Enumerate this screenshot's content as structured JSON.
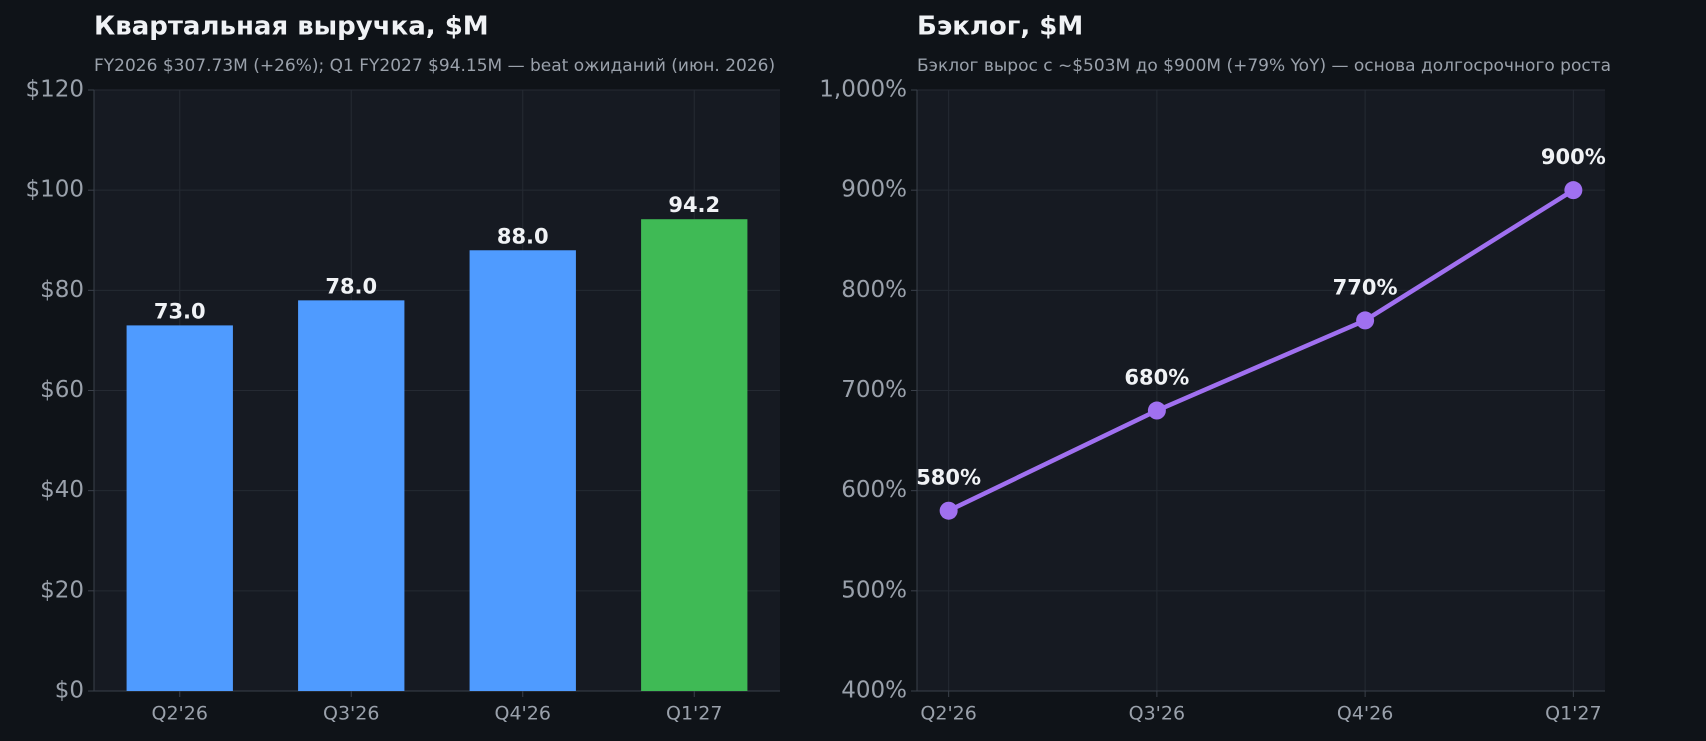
{
  "chart_data": [
    {
      "type": "bar",
      "title": "Квартальная выручка, $M",
      "subtitle": "FY2026 $307.73M (+26%); Q1 FY2027 $94.15M — beat ожиданий (июн. 2026)",
      "categories": [
        "Q2'26",
        "Q3'26",
        "Q4'26",
        "Q1'27"
      ],
      "values": [
        73,
        78,
        88,
        94.2
      ],
      "value_labels": [
        "73.0",
        "78.0",
        "88.0",
        "94.2"
      ],
      "colors": [
        "#4f9bff",
        "#4f9bff",
        "#4f9bff",
        "#3fba55"
      ],
      "ylim": [
        0,
        120
      ],
      "yticks": [
        {
          "value": 0,
          "label": "$0"
        },
        {
          "value": 20,
          "label": "$20"
        },
        {
          "value": 40,
          "label": "$40"
        },
        {
          "value": 60,
          "label": "$60"
        },
        {
          "value": 80,
          "label": "$80"
        },
        {
          "value": 100,
          "label": "$100"
        },
        {
          "value": 120,
          "label": "$120"
        }
      ],
      "grid": true
    },
    {
      "type": "line",
      "title": "Бэклог, $M",
      "subtitle": "Бэклог вырос с ~$503M до $900M (+79% YoY) — основа долгосрочного роста",
      "categories": [
        "Q2'26",
        "Q3'26",
        "Q4'26",
        "Q1'27"
      ],
      "values": [
        580,
        680,
        770,
        900
      ],
      "value_labels": [
        "580%",
        "680%",
        "770%",
        "900%"
      ],
      "color": "#a070f0",
      "ylim": [
        400,
        1000
      ],
      "yticks": [
        {
          "value": 400,
          "label": "400%"
        },
        {
          "value": 500,
          "label": "500%"
        },
        {
          "value": 600,
          "label": "600%"
        },
        {
          "value": 700,
          "label": "700%"
        },
        {
          "value": 800,
          "label": "800%"
        },
        {
          "value": 900,
          "label": "900%"
        },
        {
          "value": 1000,
          "label": "1,000%"
        }
      ],
      "grid": true
    }
  ]
}
